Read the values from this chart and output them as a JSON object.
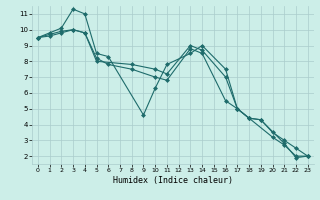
{
  "xlabel": "Humidex (Indice chaleur)",
  "bg_color": "#cceee8",
  "grid_color": "#aacccc",
  "line_color": "#1e6b6b",
  "xlim": [
    -0.5,
    23.5
  ],
  "ylim": [
    1.5,
    11.5
  ],
  "yticks": [
    2,
    3,
    4,
    5,
    6,
    7,
    8,
    9,
    10,
    11
  ],
  "xticks": [
    0,
    1,
    2,
    3,
    4,
    5,
    6,
    7,
    8,
    9,
    10,
    11,
    12,
    13,
    14,
    15,
    16,
    17,
    18,
    19,
    20,
    21,
    22,
    23
  ],
  "line1": {
    "x": [
      0,
      1,
      2,
      3,
      4,
      5,
      6,
      9,
      10,
      11,
      13,
      14,
      16,
      17,
      18,
      19,
      21,
      22,
      23
    ],
    "y": [
      9.5,
      9.8,
      10.1,
      11.3,
      11.0,
      8.5,
      8.3,
      4.6,
      6.3,
      7.8,
      8.5,
      9.0,
      7.5,
      5.0,
      4.4,
      4.3,
      2.8,
      1.9,
      2.0
    ]
  },
  "line2": {
    "x": [
      0,
      1,
      2,
      3,
      4,
      5,
      6,
      8,
      10,
      11,
      13,
      14,
      16,
      17,
      18,
      20,
      21,
      22,
      23
    ],
    "y": [
      9.5,
      9.7,
      9.9,
      10.0,
      9.8,
      8.2,
      7.8,
      7.5,
      7.0,
      6.8,
      8.8,
      8.5,
      5.5,
      5.0,
      4.4,
      3.2,
      2.7,
      2.0,
      2.0
    ]
  },
  "line3": {
    "x": [
      0,
      1,
      2,
      3,
      4,
      5,
      8,
      10,
      11,
      13,
      14,
      16,
      17,
      18,
      19,
      20,
      21,
      22,
      23
    ],
    "y": [
      9.5,
      9.6,
      9.8,
      10.0,
      9.8,
      8.0,
      7.8,
      7.5,
      7.2,
      9.0,
      8.7,
      7.0,
      5.0,
      4.4,
      4.3,
      3.5,
      3.0,
      2.5,
      2.0
    ]
  }
}
